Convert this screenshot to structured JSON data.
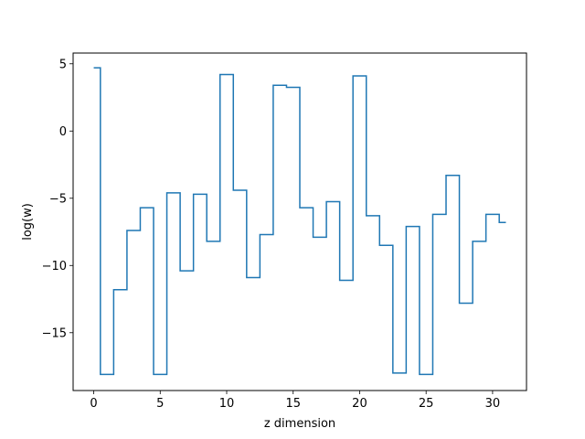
{
  "chart_data": {
    "type": "line",
    "drawstyle": "steps-mid",
    "title": "",
    "xlabel": "z dimension",
    "ylabel": "log(w)",
    "xlim": [
      -1.55,
      32.55
    ],
    "ylim": [
      -19.3,
      5.8
    ],
    "xticks": [
      0,
      5,
      10,
      15,
      20,
      25,
      30
    ],
    "yticks": [
      5,
      0,
      -5,
      -10,
      -15
    ],
    "ytick_labels": [
      "5",
      "0",
      "−5",
      "−10",
      "−15"
    ],
    "grid": false,
    "series": [
      {
        "color": "#1f77b4",
        "x": [
          0,
          1,
          2,
          3,
          4,
          5,
          6,
          7,
          8,
          9,
          10,
          11,
          12,
          13,
          14,
          15,
          16,
          17,
          18,
          19,
          20,
          21,
          22,
          23,
          24,
          25,
          26,
          27,
          28,
          29,
          30,
          31
        ],
        "values": [
          4.7,
          -18.1,
          -11.8,
          -7.4,
          -5.7,
          -18.1,
          -4.6,
          -10.4,
          -4.7,
          -8.2,
          4.2,
          -4.4,
          -10.9,
          -7.7,
          3.4,
          3.25,
          -5.7,
          -7.9,
          -5.25,
          -11.1,
          4.1,
          -6.3,
          -8.5,
          -18.0,
          -7.1,
          -18.1,
          -6.2,
          -3.3,
          -12.8,
          -8.2,
          -6.2,
          -6.8
        ]
      }
    ]
  }
}
